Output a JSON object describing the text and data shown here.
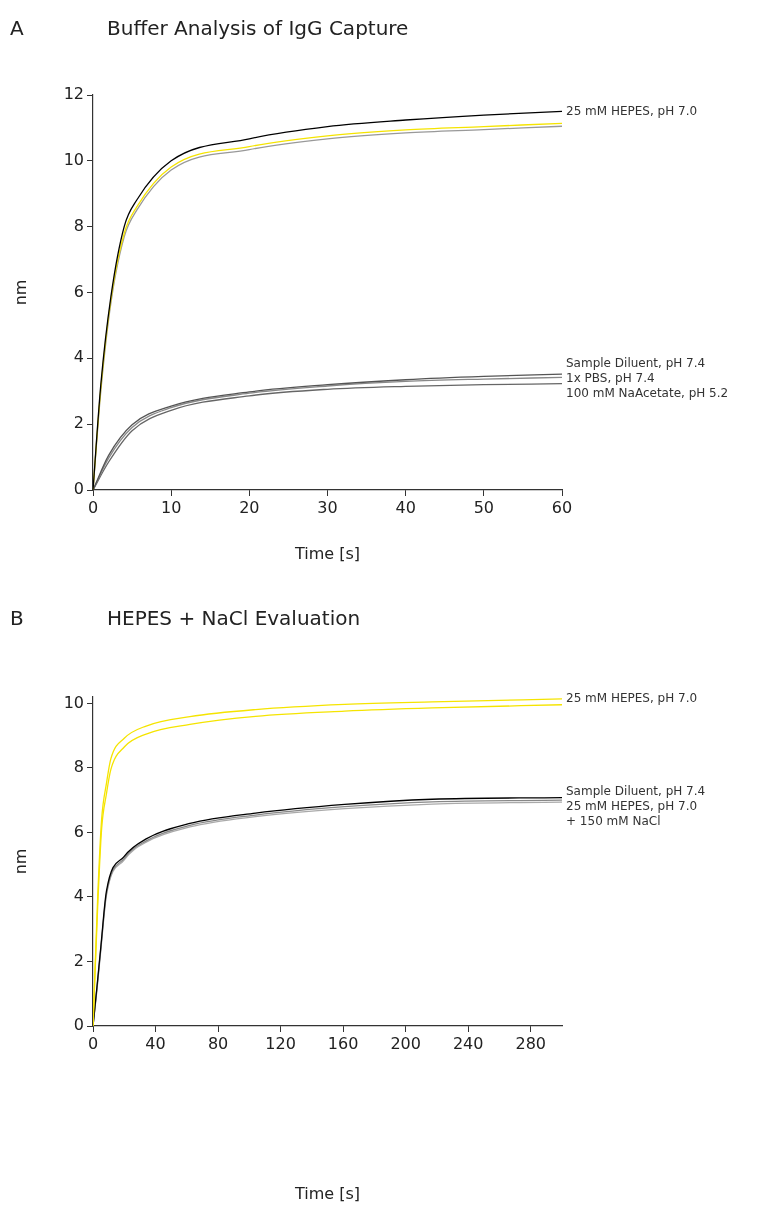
{
  "chart_data": [
    {
      "type": "line",
      "title": "Buffer Analysis of IgG Capture",
      "annotations": [
        "A"
      ],
      "xlabel": "Time [s]",
      "ylabel": "nm",
      "xlim": [
        0,
        60
      ],
      "xticks": [
        0,
        10,
        20,
        30,
        40,
        50,
        60
      ],
      "ylim": [
        0,
        12
      ],
      "yticks": [
        0,
        2,
        4,
        6,
        8,
        10,
        12
      ],
      "grid": false,
      "legend": false,
      "marker": "none",
      "line_style": "solid",
      "x": [
        0,
        1,
        2.3,
        4,
        5.6,
        10,
        20,
        30,
        40,
        50,
        60
      ],
      "series": [
        {
          "name": "25 mM HEPES, pH 7.0",
          "color": "#000000",
          "values": [
            0,
            3.2,
            5.89,
            8.01,
            8.81,
            10.0,
            10.67,
            11.04,
            11.24,
            11.39,
            11.5
          ]
        },
        {
          "color": "#f5e400",
          "values": [
            0,
            3.1,
            5.8,
            7.8,
            8.6,
            9.81,
            10.43,
            10.76,
            10.94,
            11.04,
            11.14
          ]
        },
        {
          "color": "#999999",
          "values": [
            0,
            3.0,
            5.7,
            7.7,
            8.5,
            9.72,
            10.34,
            10.67,
            10.85,
            10.95,
            11.05
          ]
        },
        {
          "name": "Sample Diluent, pH 7.4",
          "color": "#555555",
          "x": [
            0,
            2,
            5,
            10,
            20,
            30,
            40,
            50,
            60
          ],
          "values": [
            0,
            1.05,
            1.98,
            2.55,
            2.98,
            3.2,
            3.35,
            3.45,
            3.52
          ]
        },
        {
          "name": "1x PBS, pH 7.4",
          "color": "#888888",
          "x": [
            0,
            2,
            5,
            10,
            20,
            30,
            40,
            50,
            60
          ],
          "values": [
            0,
            0.97,
            1.9,
            2.5,
            2.94,
            3.16,
            3.3,
            3.37,
            3.42
          ]
        },
        {
          "name": "100 mM NaAcetate, pH 5.2",
          "color": "#666666",
          "x": [
            0,
            2,
            5,
            10,
            20,
            30,
            40,
            50,
            60
          ],
          "values": [
            0,
            0.85,
            1.8,
            2.42,
            2.86,
            3.06,
            3.15,
            3.2,
            3.23
          ]
        }
      ]
    },
    {
      "type": "line",
      "title": "HEPES + NaCl Evaluation",
      "annotations": [
        "B"
      ],
      "xlabel": "Time [s]",
      "ylabel": "nm",
      "xlim": [
        0,
        300
      ],
      "xticks": [
        0,
        40,
        80,
        120,
        160,
        200,
        240,
        280
      ],
      "ylim": [
        0,
        10.2
      ],
      "yticks": [
        0,
        2,
        4,
        6,
        8,
        10
      ],
      "grid": false,
      "legend": false,
      "marker": "none",
      "line_style": "solid",
      "x": [
        0,
        3,
        5.5,
        8.6,
        11.4,
        20,
        34,
        62,
        104,
        161,
        217,
        300
      ],
      "series": [
        {
          "name": "25 mM HEPES, pH 7.0",
          "color": "#f5e400",
          "values": [
            0,
            4.0,
            6.4,
            7.52,
            8.28,
            8.92,
            9.3,
            9.59,
            9.81,
            9.97,
            10.05,
            10.14
          ]
        },
        {
          "color": "#f5e400",
          "values": [
            0,
            3.7,
            6.1,
            7.2,
            7.95,
            8.65,
            9.05,
            9.35,
            9.6,
            9.76,
            9.86,
            9.96
          ]
        },
        {
          "name": "Sample Diluent, pH 7.4",
          "color": "#000000",
          "x": [
            0,
            2.5,
            5,
            8.6,
            20,
            34,
            62,
            104,
            161,
            217,
            300
          ],
          "values": [
            0,
            1.2,
            2.45,
            4.18,
            5.26,
            5.8,
            6.28,
            6.6,
            6.87,
            7.03,
            7.08
          ]
        },
        {
          "name": "25 mM HEPES, pH 7.0\n+ 150 mM NaCl",
          "color": "#888888",
          "x": [
            0,
            2.5,
            5,
            8.6,
            20,
            34,
            62,
            104,
            161,
            217,
            300
          ],
          "values": [
            0,
            1.15,
            2.4,
            4.1,
            5.2,
            5.74,
            6.22,
            6.54,
            6.8,
            6.95,
            7.0
          ]
        },
        {
          "color": "#aaaaaa",
          "x": [
            0,
            2.5,
            5,
            8.6,
            20,
            34,
            62,
            104,
            161,
            217,
            300
          ],
          "values": [
            0,
            1.1,
            2.35,
            4.05,
            5.15,
            5.7,
            6.17,
            6.49,
            6.74,
            6.88,
            6.94
          ]
        }
      ]
    }
  ]
}
